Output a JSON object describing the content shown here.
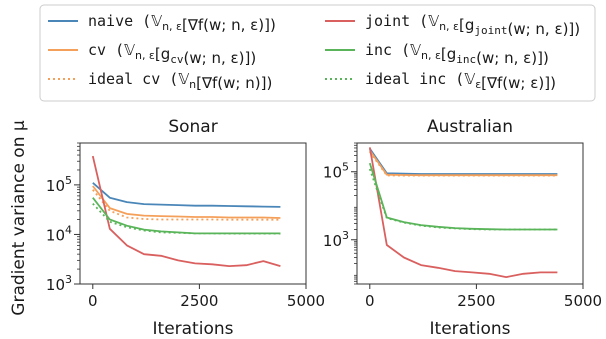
{
  "y_label": "Gradient variance on μ",
  "legend": [
    {
      "id": "naive",
      "color": "#4a86b8",
      "dash": "",
      "pre": "naive (",
      "sym": "𝕍",
      "sub": "n, ε",
      "body": "[∇f(w; n, ε)]",
      "post": ")",
      "col": 0
    },
    {
      "id": "cv",
      "color": "#f5a05a",
      "dash": "",
      "pre": "cv (",
      "sym": "𝕍",
      "sub": "n, ε",
      "body": "[g",
      "sub2": "cv",
      "body2": "(w; n, ε)]",
      "post": ")",
      "col": 0
    },
    {
      "id": "ideal-cv",
      "color": "#f5a05a",
      "dash": "2,3",
      "pre": "ideal cv (",
      "sym": "𝕍",
      "sub": "n",
      "body": "[∇f(w; n)]",
      "post": ")",
      "col": 0
    },
    {
      "id": "joint",
      "color": "#d9605f",
      "dash": "",
      "pre": "joint (",
      "sym": "𝕍",
      "sub": "n, ε",
      "body": "[g",
      "sub2": "joint",
      "body2": "(w; n, ε)]",
      "post": ")",
      "col": 1
    },
    {
      "id": "inc",
      "color": "#5ab55a",
      "dash": "",
      "pre": "inc (",
      "sym": "𝕍",
      "sub": "n, ε",
      "body": "[g",
      "sub2": "inc",
      "body2": "(w; n, ε)]",
      "post": ")",
      "col": 1
    },
    {
      "id": "ideal-inc",
      "color": "#5ab55a",
      "dash": "2,3",
      "pre": "ideal inc (",
      "sym": "𝕍",
      "sub": "ε",
      "body": "[∇f(w; ε)]",
      "post": ")",
      "col": 1
    }
  ],
  "chart_data": [
    {
      "type": "line",
      "title": "Sonar",
      "xlabel": "Iterations",
      "ylabel": "Gradient variance on μ",
      "xlim": [
        -300,
        5000
      ],
      "ylim": [
        1000,
        700000
      ],
      "yscale": "log",
      "xticks": [
        0,
        2500,
        5000
      ],
      "yticks": [
        {
          "v": 1000,
          "label": "10",
          "exp": "3"
        },
        {
          "v": 10000,
          "label": "10",
          "exp": "4"
        },
        {
          "v": 100000,
          "label": "10",
          "exp": "5"
        }
      ],
      "x": [
        0,
        400,
        800,
        1200,
        1600,
        2000,
        2400,
        2800,
        3200,
        3600,
        4000,
        4400
      ],
      "series": [
        {
          "id": "naive",
          "values": [
            110000,
            55000,
            45000,
            41000,
            40000,
            39000,
            38000,
            38000,
            37500,
            37000,
            36500,
            36000
          ]
        },
        {
          "id": "cv",
          "values": [
            95000,
            34000,
            26000,
            24000,
            23500,
            23000,
            22500,
            22500,
            22000,
            22000,
            22000,
            21500
          ]
        },
        {
          "id": "ideal-cv",
          "values": [
            80000,
            30000,
            22000,
            20500,
            20000,
            20000,
            20000,
            20000,
            19800,
            19800,
            19800,
            19800
          ]
        },
        {
          "id": "joint",
          "values": [
            380000,
            13000,
            6000,
            4000,
            3700,
            3000,
            2600,
            2500,
            2300,
            2400,
            2900,
            2300
          ]
        },
        {
          "id": "inc",
          "values": [
            55000,
            20000,
            15000,
            12500,
            11500,
            11000,
            10500,
            10500,
            10500,
            10500,
            10500,
            10500
          ]
        },
        {
          "id": "ideal-inc",
          "values": [
            42000,
            18000,
            14000,
            12000,
            11000,
            10800,
            10500,
            10500,
            10400,
            10400,
            10400,
            10400
          ]
        }
      ]
    },
    {
      "type": "line",
      "title": "Australian",
      "xlabel": "Iterations",
      "ylabel": "",
      "xlim": [
        -300,
        5000
      ],
      "ylim": [
        50,
        700000
      ],
      "yscale": "log",
      "xticks": [
        0,
        2500,
        5000
      ],
      "yticks": [
        {
          "v": 1000,
          "label": "10",
          "exp": "3"
        },
        {
          "v": 100000,
          "label": "10",
          "exp": "5"
        }
      ],
      "x": [
        0,
        400,
        800,
        1200,
        1600,
        2000,
        2400,
        2800,
        3200,
        3600,
        4000,
        4400
      ],
      "series": [
        {
          "id": "naive",
          "values": [
            480000,
            90000,
            88000,
            86000,
            86000,
            86000,
            86000,
            86000,
            86000,
            86000,
            86000,
            86000
          ]
        },
        {
          "id": "cv",
          "values": [
            420000,
            82000,
            80000,
            79000,
            79000,
            79000,
            79000,
            79000,
            79000,
            79000,
            79000,
            79000
          ]
        },
        {
          "id": "ideal-cv",
          "values": [
            380000,
            78000,
            77000,
            77000,
            77000,
            77000,
            77000,
            77000,
            77000,
            77000,
            77000,
            77000
          ]
        },
        {
          "id": "joint",
          "values": [
            520000,
            700,
            300,
            180,
            150,
            120,
            110,
            100,
            80,
            100,
            110,
            110
          ]
        },
        {
          "id": "inc",
          "values": [
            180000,
            4500,
            3300,
            2700,
            2400,
            2200,
            2100,
            2050,
            2000,
            2000,
            2000,
            2000
          ]
        },
        {
          "id": "ideal-inc",
          "values": [
            120000,
            4300,
            3200,
            2600,
            2300,
            2150,
            2050,
            2000,
            2000,
            2000,
            2000,
            2000
          ]
        }
      ]
    }
  ]
}
